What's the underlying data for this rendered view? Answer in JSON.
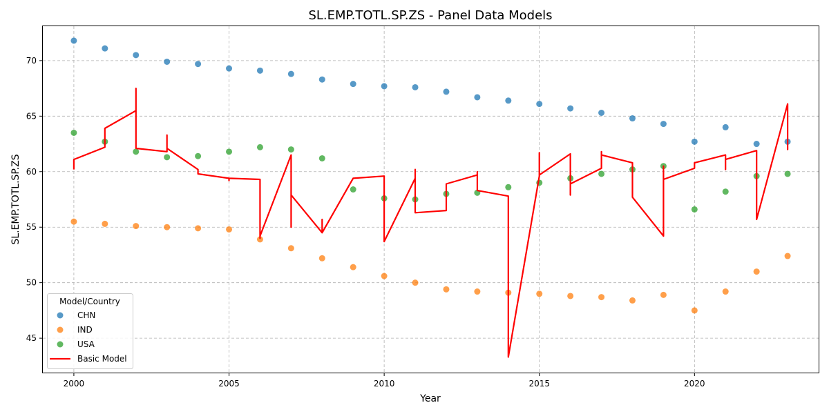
{
  "chart_data": {
    "type": "scatter",
    "title": "SL.EMP.TOTL.SP.ZS - Panel Data Models",
    "xlabel": "Year",
    "ylabel": "SL.EMP.TOTL.SP.ZS",
    "xlim": [
      1999.0,
      2024.0
    ],
    "ylim": [
      41.9,
      73.1
    ],
    "xticks": [
      2000,
      2005,
      2010,
      2015,
      2020
    ],
    "yticks": [
      45,
      50,
      55,
      60,
      65,
      70
    ],
    "grid": true,
    "legend": {
      "title": "Model/Country",
      "placement": "lower-left"
    },
    "series": [
      {
        "name": "CHN",
        "kind": "scatter",
        "color": "#1f77b4",
        "x": [
          2000,
          2001,
          2002,
          2003,
          2004,
          2005,
          2006,
          2007,
          2008,
          2009,
          2010,
          2011,
          2012,
          2013,
          2014,
          2015,
          2016,
          2017,
          2018,
          2019,
          2020,
          2021,
          2022,
          2023
        ],
        "y": [
          71.8,
          71.1,
          70.5,
          69.9,
          69.7,
          69.3,
          69.1,
          68.8,
          68.3,
          67.9,
          67.7,
          67.6,
          67.2,
          66.7,
          66.4,
          66.1,
          65.7,
          65.3,
          64.8,
          64.3,
          62.7,
          64.0,
          62.5,
          62.7
        ]
      },
      {
        "name": "IND",
        "kind": "scatter",
        "color": "#ff7f0e",
        "x": [
          2000,
          2001,
          2002,
          2003,
          2004,
          2005,
          2006,
          2007,
          2008,
          2009,
          2010,
          2011,
          2012,
          2013,
          2014,
          2015,
          2016,
          2017,
          2018,
          2019,
          2020,
          2021,
          2022,
          2023
        ],
        "y": [
          55.5,
          55.3,
          55.1,
          55.0,
          54.9,
          54.8,
          53.9,
          53.1,
          52.2,
          51.4,
          50.6,
          50.0,
          49.4,
          49.2,
          49.1,
          49.0,
          48.8,
          48.7,
          48.4,
          48.9,
          47.5,
          49.2,
          51.0,
          52.4
        ]
      },
      {
        "name": "USA",
        "kind": "scatter",
        "color": "#2ca02c",
        "x": [
          2000,
          2001,
          2002,
          2003,
          2004,
          2005,
          2006,
          2007,
          2008,
          2009,
          2010,
          2011,
          2012,
          2013,
          2014,
          2015,
          2016,
          2017,
          2018,
          2019,
          2020,
          2021,
          2022,
          2023
        ],
        "y": [
          63.5,
          62.7,
          61.8,
          61.3,
          61.4,
          61.8,
          62.2,
          62.0,
          61.2,
          58.4,
          57.6,
          57.5,
          58.0,
          58.1,
          58.6,
          59.0,
          59.4,
          59.8,
          60.2,
          60.5,
          56.6,
          58.2,
          59.6,
          59.8
        ]
      },
      {
        "name": "Basic Model",
        "kind": "line",
        "color": "#ff0000",
        "x": [
          2000,
          2000,
          2001,
          2001,
          2002,
          2002,
          2002,
          2003,
          2003,
          2003,
          2004,
          2004,
          2005,
          2005,
          2005,
          2006,
          2006,
          2006,
          2007,
          2007,
          2007,
          2008,
          2008,
          2008,
          2009,
          2010,
          2010,
          2011,
          2011,
          2011,
          2012,
          2012,
          2013,
          2013,
          2013,
          2014,
          2014,
          2015,
          2015,
          2015,
          2016,
          2016,
          2016,
          2017,
          2017,
          2017,
          2018,
          2018,
          2019,
          2019,
          2019,
          2020,
          2020,
          2021,
          2021,
          2021,
          2022,
          2022,
          2023,
          2023,
          2023
        ],
        "y": [
          60.2,
          61.1,
          62.2,
          63.9,
          65.5,
          67.5,
          62.1,
          61.8,
          63.3,
          62.1,
          60.2,
          59.8,
          59.4,
          59.2,
          59.4,
          59.3,
          54.0,
          54.2,
          61.5,
          55.0,
          57.9,
          54.5,
          55.7,
          54.5,
          59.4,
          59.6,
          53.7,
          59.4,
          60.2,
          56.3,
          56.5,
          58.9,
          59.7,
          60.0,
          58.3,
          57.8,
          43.3,
          59.6,
          61.7,
          59.7,
          61.6,
          57.9,
          58.9,
          60.3,
          61.8,
          61.5,
          60.8,
          57.7,
          54.2,
          60.5,
          59.3,
          60.3,
          60.8,
          61.5,
          60.2,
          61.1,
          61.9,
          55.7,
          66.1,
          62.0,
          62.5
        ]
      }
    ]
  }
}
